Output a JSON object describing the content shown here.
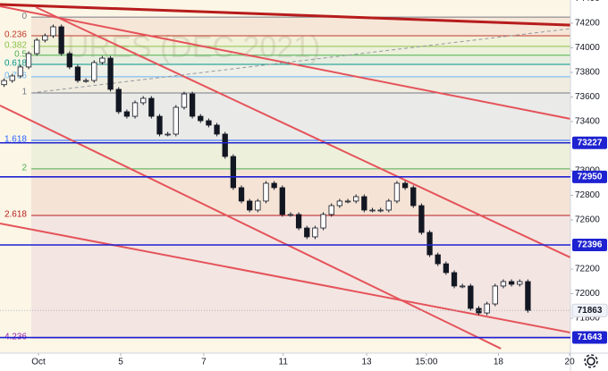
{
  "chart_data": {
    "type": "candlestick",
    "watermark": "URES (DEC 2021)",
    "xlim": [
      -0.5,
      69.2
    ],
    "ylim": [
      71516,
      74389
    ],
    "xticks": [
      {
        "value": 4.2,
        "label": "Oct"
      },
      {
        "value": 14.25,
        "label": "5"
      },
      {
        "value": 24.4,
        "label": "7"
      },
      {
        "value": 34.1,
        "label": "11"
      },
      {
        "value": 44.3,
        "label": "13"
      },
      {
        "value": 51.6,
        "label": "15:00"
      },
      {
        "value": 60.4,
        "label": "18"
      },
      {
        "value": 69.1,
        "label": "20"
      }
    ],
    "yticks": [
      74400,
      74200,
      74000,
      73800,
      73600,
      73400,
      73000,
      72800,
      72600,
      72200,
      72000,
      71800
    ],
    "grid": false,
    "up_color": "#ffffff",
    "down_color": "#131722",
    "wick_color": "#131722",
    "x": [
      0,
      1,
      2,
      3,
      4,
      5,
      6,
      7,
      8,
      9,
      10,
      11,
      12,
      13,
      14,
      15,
      16,
      17,
      18,
      19,
      20,
      21,
      22,
      23,
      24,
      25,
      26,
      27,
      28,
      29,
      30,
      31,
      32,
      33,
      34,
      35,
      36,
      37,
      38,
      39,
      40,
      41,
      42,
      43,
      44,
      45,
      46,
      47,
      48,
      49,
      50,
      51,
      52,
      53,
      54,
      55,
      56,
      57,
      58,
      59,
      60,
      61,
      62,
      63,
      64
    ],
    "open": [
      73700,
      73734,
      73771,
      73844,
      73953,
      74062,
      74098,
      74171,
      73953,
      73844,
      73734,
      73734,
      73880,
      73916,
      73662,
      73480,
      73443,
      73553,
      73589,
      73443,
      73298,
      73298,
      73516,
      73625,
      73443,
      73407,
      73371,
      73298,
      73116,
      72862,
      72753,
      72680,
      72753,
      72898,
      72862,
      72644,
      72644,
      72534,
      72462,
      72534,
      72644,
      72716,
      72753,
      72753,
      72789,
      72680,
      72680,
      72680,
      72753,
      72898,
      72862,
      72716,
      72498,
      72316,
      72243,
      72171,
      72062,
      72062,
      71880,
      71843,
      71916,
      72062,
      72098,
      72076,
      72098
    ],
    "high": [
      73752,
      73789,
      73862,
      73971,
      74080,
      74116,
      74189,
      74189,
      73971,
      73862,
      73752,
      73898,
      73934,
      73934,
      73680,
      73498,
      73571,
      73607,
      73607,
      73461,
      73316,
      73534,
      73643,
      73643,
      73461,
      73425,
      73389,
      73316,
      73134,
      72880,
      72771,
      72771,
      72916,
      72916,
      72880,
      72662,
      72662,
      72552,
      72552,
      72662,
      72734,
      72771,
      72771,
      72807,
      72807,
      72698,
      72698,
      72771,
      72916,
      72916,
      72880,
      72734,
      72516,
      72334,
      72261,
      72189,
      72080,
      72080,
      71898,
      71934,
      72080,
      72116,
      72116,
      72116,
      72116
    ],
    "low": [
      73682,
      73716,
      73753,
      73826,
      73935,
      74044,
      74080,
      73935,
      73826,
      73716,
      73716,
      73716,
      73862,
      73644,
      73462,
      73425,
      73425,
      73535,
      73425,
      73280,
      73280,
      73280,
      73498,
      73425,
      73389,
      73353,
      73280,
      73098,
      72844,
      72735,
      72662,
      72662,
      72735,
      72844,
      72626,
      72626,
      72516,
      72444,
      72444,
      72516,
      72626,
      72698,
      72735,
      72735,
      72662,
      72662,
      72662,
      72662,
      72735,
      72844,
      72698,
      72480,
      72298,
      72225,
      72153,
      72044,
      72044,
      71862,
      71825,
      71825,
      71898,
      72044,
      72058,
      72058,
      71845
    ],
    "close": [
      73734,
      73771,
      73844,
      73953,
      74062,
      74098,
      74171,
      73953,
      73844,
      73734,
      73734,
      73880,
      73916,
      73662,
      73480,
      73443,
      73553,
      73589,
      73443,
      73298,
      73298,
      73516,
      73625,
      73443,
      73407,
      73371,
      73298,
      73116,
      72862,
      72753,
      72680,
      72753,
      72898,
      72862,
      72644,
      72644,
      72534,
      72462,
      72534,
      72644,
      72716,
      72753,
      72753,
      72789,
      72680,
      72680,
      72680,
      72753,
      72898,
      72862,
      72716,
      72498,
      72316,
      72243,
      72171,
      72062,
      72062,
      71880,
      71843,
      71916,
      72062,
      72098,
      72076,
      72098,
      71863
    ],
    "fib_levels": [
      {
        "label": "0",
        "price": 74250,
        "color": "#787b86"
      },
      {
        "label": "0.236",
        "price": 74098,
        "color": "#c0392b"
      },
      {
        "label": "0.382",
        "price": 74012,
        "color": "#8bc34a"
      },
      {
        "label": "0.5",
        "price": 73940,
        "color": "#4caf50"
      },
      {
        "label": "0.618",
        "price": 73865,
        "color": "#009688"
      },
      {
        "label": "0.786",
        "price": 73764,
        "color": "#64b5f6"
      },
      {
        "label": "1",
        "price": 73633,
        "color": "#787b86"
      },
      {
        "label": "1.618",
        "price": 73247,
        "color": "#2962ff"
      },
      {
        "label": "2",
        "price": 73015,
        "color": "#4caf50"
      },
      {
        "label": "2.618",
        "price": 72636,
        "color": "#b71c1c"
      },
      {
        "label": "4.236",
        "price": 71640,
        "color": "#9c27b0"
      }
    ],
    "trend_lines": [
      {
        "x": [
          -0.5,
          69.2
        ],
        "y": [
          74353,
          74185
        ],
        "color": "#b71c1c",
        "width": 3,
        "dashed": false
      },
      {
        "x": [
          -0.5,
          69.2
        ],
        "y": [
          74338,
          73422
        ],
        "color": "#e5535a",
        "width": 2,
        "dashed": false
      },
      {
        "x": [
          3.87,
          69.2
        ],
        "y": [
          74331,
          72294
        ],
        "color": "#e5535a",
        "width": 2,
        "dashed": false
      },
      {
        "x": [
          -0.5,
          69.2
        ],
        "y": [
          72571,
          71683
        ],
        "color": "#e5535a",
        "width": 2,
        "dashed": false
      },
      {
        "x": [
          -0.5,
          60.7
        ],
        "y": [
          73531,
          71553
        ],
        "color": "#e5535a",
        "width": 2,
        "dashed": false
      },
      {
        "x": [
          3.32,
          69.2
        ],
        "y": [
          73633,
          74156
        ],
        "color": "#9598a1",
        "width": 1,
        "dashed": true
      }
    ],
    "price_levels": [
      {
        "value": 73227,
        "color": "#1e22d0",
        "style": "solid"
      },
      {
        "value": 72950,
        "color": "#1e22d0",
        "style": "solid"
      },
      {
        "value": 72396,
        "color": "#1e22d0",
        "style": "solid"
      },
      {
        "value": 71863,
        "color": "#b2b5be",
        "style": "dotted"
      },
      {
        "value": 71643,
        "color": "#1e22d0",
        "style": "solid"
      }
    ]
  }
}
